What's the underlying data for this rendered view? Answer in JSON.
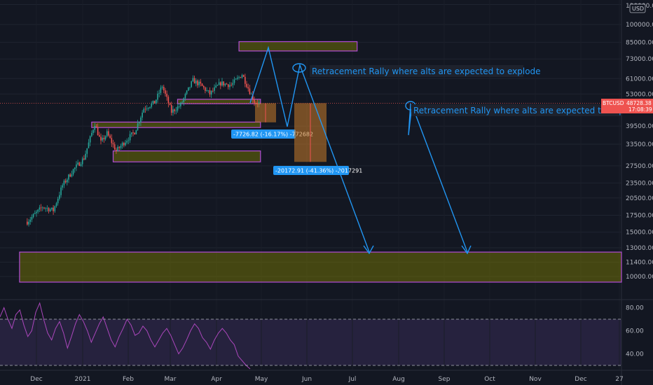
{
  "symbol": "BTCUSD",
  "price_tag": {
    "symbol": "BTCUSD",
    "price": "48728.38",
    "time": "17:08:39"
  },
  "currency_label": "USD",
  "chart_data": [
    {
      "type": "candlestick",
      "title": "",
      "y_axis": {
        "scale": "log",
        "ticks": [
          {
            "value": 120000,
            "label": "120000.00"
          },
          {
            "value": 100000,
            "label": "100000.00"
          },
          {
            "value": 85000,
            "label": "85000.00"
          },
          {
            "value": 73000,
            "label": "73000.00"
          },
          {
            "value": 61000,
            "label": "61000.00"
          },
          {
            "value": 53000,
            "label": "53000.00"
          },
          {
            "value": 39500,
            "label": "39500.00"
          },
          {
            "value": 33500,
            "label": "33500.00"
          },
          {
            "value": 27500,
            "label": "27500.00"
          },
          {
            "value": 23500,
            "label": "23500.00"
          },
          {
            "value": 20500,
            "label": "20500.00"
          },
          {
            "value": 17500,
            "label": "17500.00"
          },
          {
            "value": 15000,
            "label": "15000.00"
          },
          {
            "value": 13000,
            "label": "13000.00"
          },
          {
            "value": 11400,
            "label": "11400.00"
          },
          {
            "value": 10000,
            "label": "10000.00"
          }
        ]
      },
      "x_axis": {
        "ticks": [
          "Dec",
          "2021",
          "Feb",
          "Mar",
          "Apr",
          "May",
          "Jun",
          "Jul",
          "Aug",
          "Sep",
          "Oct",
          "Nov",
          "Dec",
          "27"
        ]
      },
      "last_price": 48728.38,
      "price_path": [
        {
          "date": "2020-11-25",
          "close": 16500
        },
        {
          "date": "2020-12-05",
          "close": 18900
        },
        {
          "date": "2020-12-12",
          "close": 18300
        },
        {
          "date": "2020-12-18",
          "close": 23000
        },
        {
          "date": "2020-12-25",
          "close": 26500
        },
        {
          "date": "2021-01-01",
          "close": 29500
        },
        {
          "date": "2021-01-08",
          "close": 40500
        },
        {
          "date": "2021-01-12",
          "close": 34000
        },
        {
          "date": "2021-01-16",
          "close": 37000
        },
        {
          "date": "2021-01-22",
          "close": 31500
        },
        {
          "date": "2021-01-28",
          "close": 34500
        },
        {
          "date": "2021-02-03",
          "close": 37500
        },
        {
          "date": "2021-02-09",
          "close": 46500
        },
        {
          "date": "2021-02-16",
          "close": 49000
        },
        {
          "date": "2021-02-21",
          "close": 57000
        },
        {
          "date": "2021-02-27",
          "close": 45000
        },
        {
          "date": "2021-03-05",
          "close": 48000
        },
        {
          "date": "2021-03-13",
          "close": 60000
        },
        {
          "date": "2021-03-18",
          "close": 57500
        },
        {
          "date": "2021-03-24",
          "close": 53000
        },
        {
          "date": "2021-03-31",
          "close": 58500
        },
        {
          "date": "2021-04-07",
          "close": 57500
        },
        {
          "date": "2021-04-14",
          "close": 63500
        },
        {
          "date": "2021-04-18",
          "close": 56000
        },
        {
          "date": "2021-04-22",
          "close": 49500
        },
        {
          "date": "2021-04-25",
          "close": 48728
        }
      ],
      "zones": [
        {
          "name": "upper-target-zone",
          "start": "2021-04-12",
          "end": "2021-06-28",
          "low": 78500,
          "high": 85500
        },
        {
          "name": "support-zone-1",
          "start": "2021-03-03",
          "end": "2021-04-26",
          "low": 48500,
          "high": 50500
        },
        {
          "name": "support-zone-2",
          "start": "2021-01-06",
          "end": "2021-04-26",
          "low": 39000,
          "high": 41000
        },
        {
          "name": "support-zone-3",
          "start": "2021-01-20",
          "end": "2021-04-26",
          "low": 28500,
          "high": 31500
        },
        {
          "name": "long-term-support-zone",
          "start": "2020-11-20",
          "end": "2021-12-31",
          "low": 9500,
          "high": 12500
        }
      ],
      "measurements": [
        {
          "name": "measure-1",
          "label": "-7726.82 (-16.17%) -772682",
          "from": 48700,
          "to": 40900
        },
        {
          "name": "measure-2",
          "label": "-20172.91 (-41.36%) -2017291",
          "from": 48700,
          "to": 28500
        }
      ],
      "annotations": [
        "Retracement Rally where alts are expected to explode",
        "Retracement Rally where alts are expected to explode"
      ]
    },
    {
      "type": "line",
      "name": "RSI",
      "y_axis": {
        "ticks": [
          80,
          60,
          40
        ]
      },
      "levels": [
        70,
        30
      ],
      "values": [
        72,
        80,
        70,
        62,
        74,
        78,
        65,
        55,
        60,
        76,
        84,
        70,
        58,
        52,
        62,
        68,
        58,
        45,
        55,
        66,
        74,
        68,
        60,
        50,
        58,
        66,
        72,
        62,
        52,
        46,
        55,
        62,
        70,
        65,
        56,
        58,
        64,
        60,
        52,
        46,
        52,
        58,
        62,
        56,
        48,
        40,
        45,
        52,
        60,
        66,
        62,
        54,
        50,
        44,
        52,
        58,
        62,
        58,
        52,
        48,
        38,
        34,
        30,
        27
      ]
    }
  ]
}
